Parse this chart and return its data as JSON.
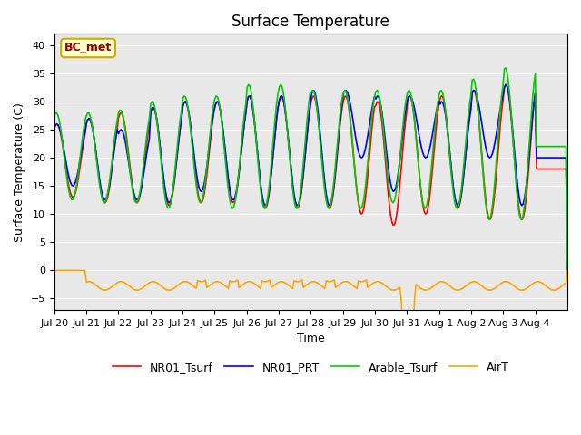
{
  "title": "Surface Temperature",
  "xlabel": "Time",
  "ylabel": "Surface Temperature (C)",
  "ylim": [
    -7,
    42
  ],
  "yticks": [
    -5,
    0,
    5,
    10,
    15,
    20,
    25,
    30,
    35,
    40
  ],
  "annotation": "BC_met",
  "legend": [
    "NR01_Tsurf",
    "NR01_PRT",
    "Arable_Tsurf",
    "AirT"
  ],
  "line_colors": [
    "#ff0000",
    "#0000ff",
    "#00cc00",
    "#ffa500"
  ],
  "background_color": "#e8e8e8",
  "figure_color": "#ffffff",
  "xtick_labels": [
    "Jul 20",
    "Jul 21",
    "Jul 22",
    "Jul 23",
    "Jul 24",
    "Jul 25",
    "Jul 26",
    "Jul 27",
    "Jul 28",
    "Jul 29",
    "Jul 30",
    "Jul 31",
    "Aug 1",
    "Aug 2",
    "Aug 3",
    "Aug 4"
  ],
  "n_days": 16,
  "min_vals_r": [
    13,
    12,
    12,
    11.5,
    12,
    12,
    11,
    11,
    11,
    10,
    8,
    10,
    11,
    9,
    9,
    18
  ],
  "max_vals_r": [
    26,
    27,
    28,
    29,
    30,
    30,
    31,
    31,
    31,
    31,
    30,
    31,
    31,
    32,
    33,
    18
  ],
  "min_vals_b": [
    15,
    12.5,
    12.5,
    12,
    14,
    12.5,
    11.5,
    11.5,
    11.5,
    20,
    14,
    20,
    11.5,
    20,
    11.5,
    20
  ],
  "max_vals_b": [
    26,
    27,
    25,
    29,
    30,
    30,
    31,
    31,
    32,
    32,
    31,
    31,
    30,
    32,
    33,
    20
  ],
  "min_vals_g": [
    12.5,
    12,
    12,
    11,
    12,
    11,
    11,
    11,
    11,
    11,
    12,
    11,
    11,
    9,
    9,
    22
  ],
  "max_vals_g": [
    28,
    28,
    28.5,
    30,
    31,
    31,
    33,
    33,
    32,
    32,
    32,
    32,
    32,
    34,
    36,
    22
  ]
}
